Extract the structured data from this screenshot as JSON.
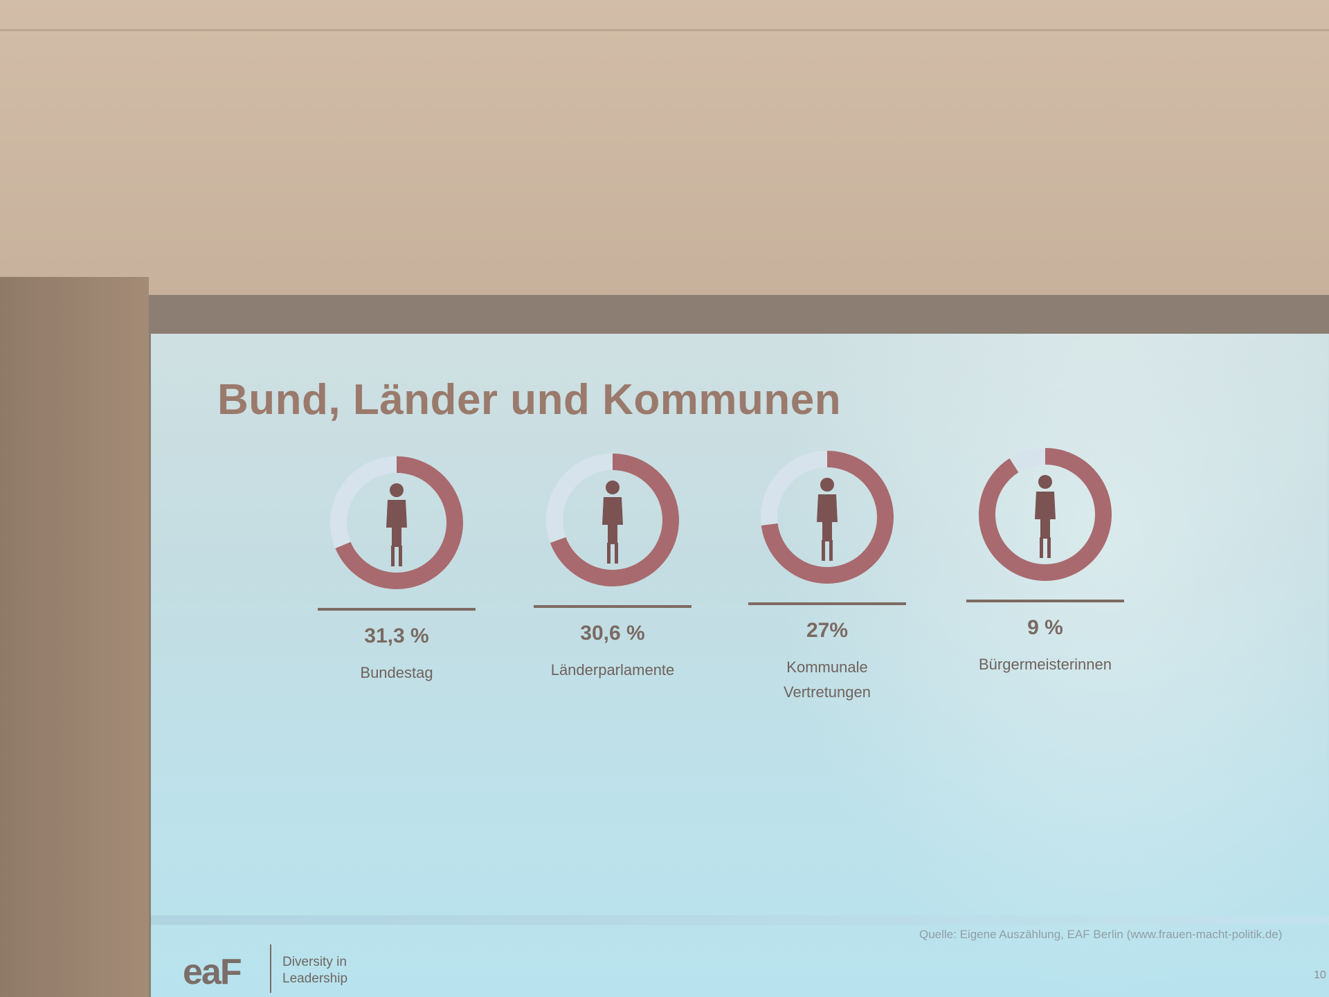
{
  "slide": {
    "title": "Bund, Länder und Kommunen",
    "source": "Quelle: Eigene Auszählung, EAF Berlin (www.frauen-macht-politik.de)",
    "page_number": "10"
  },
  "logo": {
    "text": "eaF",
    "tagline_line1": "Diversity in",
    "tagline_line2": "Leadership"
  },
  "colors": {
    "accent": "#a86a6e",
    "track": "#d7e3ec",
    "figure": "#7a5352"
  },
  "stats": [
    {
      "percent_text": "31,3 %",
      "value": 31.3,
      "label_line1": "Bundestag",
      "label_line2": ""
    },
    {
      "percent_text": "30,6 %",
      "value": 30.6,
      "label_line1": "Länderparlamente",
      "label_line2": ""
    },
    {
      "percent_text": "27%",
      "value": 27,
      "label_line1": "Kommunale",
      "label_line2": "Vertretungen"
    },
    {
      "percent_text": "9 %",
      "value": 9,
      "label_line1": "Bürgermeisterinnen",
      "label_line2": ""
    }
  ]
}
